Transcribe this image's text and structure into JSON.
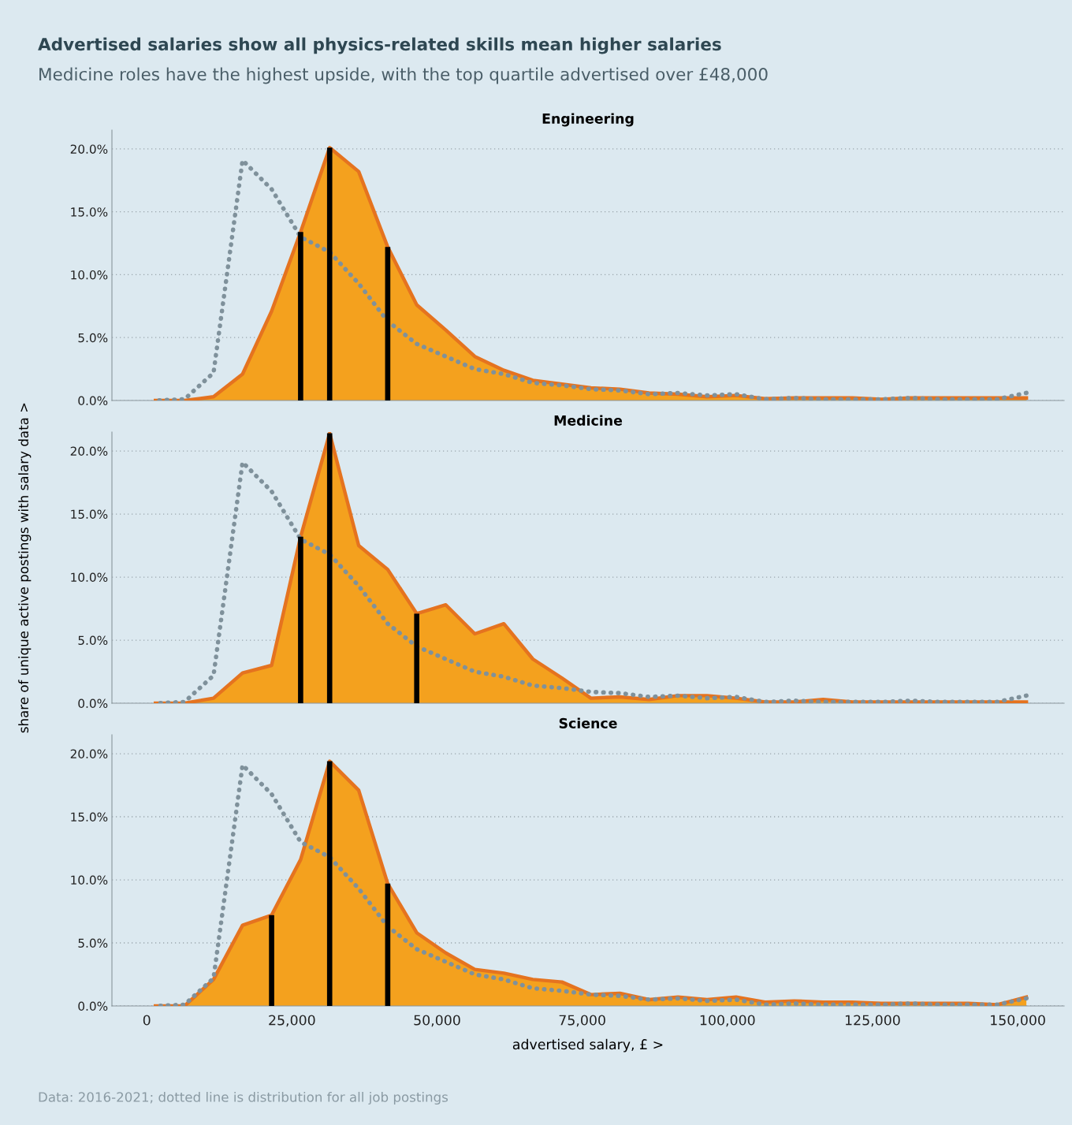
{
  "chart_data": [
    {
      "type": "other",
      "title": "Advertised salaries show all physics-related skills mean higher salaries",
      "subtitle": "Medicine roles have the highest upside, with the top quartile advertised over £48,000",
      "annotations": [
        "Data: 2016-2021; dotted line is distribution for all job postings"
      ]
    },
    {
      "type": "area",
      "title": "Engineering",
      "tick_labels": "y",
      "grid": "y",
      "xlim": [
        -6000,
        158000
      ],
      "ylim": [
        0,
        21.5
      ],
      "yticks": [
        {
          "value": 0,
          "label": "0.0%"
        },
        {
          "value": 5,
          "label": "5.0%"
        },
        {
          "value": 10,
          "label": "10.0%"
        },
        {
          "value": 15,
          "label": "15.0%"
        },
        {
          "value": 20,
          "label": "20.0%"
        }
      ],
      "x": [
        1500,
        6500,
        11500,
        16500,
        21500,
        26500,
        31500,
        36500,
        41500,
        46500,
        51500,
        56500,
        61500,
        66500,
        71500,
        76500,
        81500,
        86500,
        91500,
        96500,
        101500,
        106500,
        111500,
        116500,
        121500,
        126500,
        131500,
        136500,
        141500,
        146500,
        151500
      ],
      "series": [
        {
          "type": "area",
          "color": "#f4a11e",
          "values": [
            0,
            0,
            0.3,
            2.1,
            7.1,
            13.4,
            20.1,
            18.2,
            12.2,
            7.6,
            5.6,
            3.5,
            2.4,
            1.6,
            1.3,
            1.0,
            0.9,
            0.6,
            0.5,
            0.3,
            0.4,
            0.15,
            0.2,
            0.2,
            0.2,
            0.1,
            0.2,
            0.2,
            0.2,
            0.2,
            0.2
          ]
        },
        {
          "type": "line",
          "color": "#7f919b",
          "line_style": "dotted",
          "values": [
            0,
            0.1,
            2.2,
            19.1,
            16.8,
            13.0,
            11.8,
            9.3,
            6.3,
            4.5,
            3.5,
            2.5,
            2.1,
            1.4,
            1.2,
            0.9,
            0.8,
            0.5,
            0.6,
            0.4,
            0.5,
            0.1,
            0.2,
            0.1,
            0.1,
            0.1,
            0.2,
            0.1,
            0.1,
            0.1,
            0.6
          ]
        },
        {
          "type": "bar",
          "color": "#000000",
          "x": [
            26500,
            31500,
            41500
          ],
          "values": [
            13.4,
            20.1,
            12.2
          ]
        }
      ]
    },
    {
      "type": "area",
      "title": "Medicine",
      "ylabel": "share of unique active postings with salary data >",
      "tick_labels": "y",
      "grid": "y",
      "xlim": [
        -6000,
        158000
      ],
      "ylim": [
        0,
        21.5
      ],
      "yticks": [
        {
          "value": 0,
          "label": "0.0%"
        },
        {
          "value": 5,
          "label": "5.0%"
        },
        {
          "value": 10,
          "label": "10.0%"
        },
        {
          "value": 15,
          "label": "15.0%"
        },
        {
          "value": 20,
          "label": "20.0%"
        }
      ],
      "x": [
        1500,
        6500,
        11500,
        16500,
        21500,
        26500,
        31500,
        36500,
        41500,
        46500,
        51500,
        56500,
        61500,
        66500,
        71500,
        76500,
        81500,
        86500,
        91500,
        96500,
        101500,
        106500,
        111500,
        116500,
        121500,
        126500,
        131500,
        136500,
        141500,
        146500,
        151500
      ],
      "series": [
        {
          "type": "area",
          "color": "#f4a11e",
          "values": [
            0,
            0,
            0.4,
            2.4,
            3.0,
            13.2,
            21.4,
            12.5,
            10.6,
            7.1,
            7.8,
            5.5,
            6.3,
            3.5,
            2.0,
            0.4,
            0.5,
            0.3,
            0.6,
            0.6,
            0.4,
            0.1,
            0.1,
            0.3,
            0.1,
            0.1,
            0.1,
            0.1,
            0.1,
            0.1,
            0.1
          ]
        },
        {
          "type": "line",
          "color": "#7f919b",
          "line_style": "dotted",
          "values": [
            0,
            0.1,
            2.2,
            19.1,
            16.8,
            13.0,
            11.8,
            9.3,
            6.3,
            4.5,
            3.5,
            2.5,
            2.1,
            1.4,
            1.2,
            0.9,
            0.8,
            0.5,
            0.6,
            0.4,
            0.5,
            0.1,
            0.2,
            0.1,
            0.1,
            0.1,
            0.2,
            0.1,
            0.1,
            0.1,
            0.6
          ]
        },
        {
          "type": "bar",
          "color": "#000000",
          "x": [
            26500,
            31500,
            46500
          ],
          "values": [
            13.2,
            21.4,
            7.1
          ]
        }
      ]
    },
    {
      "type": "area",
      "title": "Science",
      "xlabel": "advertised salary, £ >",
      "grid": "y",
      "xlim": [
        -6000,
        158000
      ],
      "ylim": [
        0,
        21.5
      ],
      "xticks": [
        0,
        {
          "value": 25000,
          "label": "25,000"
        },
        {
          "value": 50000,
          "label": "50,000"
        },
        {
          "value": 75000,
          "label": "75,000"
        },
        {
          "value": 100000,
          "label": "100,000"
        },
        {
          "value": 125000,
          "label": "125,000"
        },
        {
          "value": 150000,
          "label": "150,000"
        }
      ],
      "yticks": [
        {
          "value": 0,
          "label": "0.0%"
        },
        {
          "value": 5,
          "label": "5.0%"
        },
        {
          "value": 10,
          "label": "10.0%"
        },
        {
          "value": 15,
          "label": "15.0%"
        },
        {
          "value": 20,
          "label": "20.0%"
        }
      ],
      "x": [
        1500,
        6500,
        11500,
        16500,
        21500,
        26500,
        31500,
        36500,
        41500,
        46500,
        51500,
        56500,
        61500,
        66500,
        71500,
        76500,
        81500,
        86500,
        91500,
        96500,
        101500,
        106500,
        111500,
        116500,
        121500,
        126500,
        131500,
        136500,
        141500,
        146500,
        151500
      ],
      "series": [
        {
          "type": "area",
          "color": "#f4a11e",
          "values": [
            0,
            0,
            2.1,
            6.4,
            7.2,
            11.6,
            19.4,
            17.1,
            9.7,
            5.8,
            4.2,
            2.9,
            2.6,
            2.1,
            1.9,
            0.9,
            1.0,
            0.5,
            0.7,
            0.5,
            0.7,
            0.3,
            0.4,
            0.3,
            0.3,
            0.2,
            0.2,
            0.2,
            0.2,
            0.1,
            0.7
          ]
        },
        {
          "type": "line",
          "color": "#7f919b",
          "line_style": "dotted",
          "values": [
            0,
            0.1,
            2.2,
            19.1,
            16.8,
            13.0,
            11.8,
            9.3,
            6.3,
            4.5,
            3.5,
            2.5,
            2.1,
            1.4,
            1.2,
            0.9,
            0.8,
            0.5,
            0.6,
            0.4,
            0.5,
            0.1,
            0.2,
            0.1,
            0.1,
            0.1,
            0.2,
            0.1,
            0.1,
            0.1,
            0.6
          ]
        },
        {
          "type": "bar",
          "color": "#000000",
          "x": [
            21500,
            31500,
            41500
          ],
          "values": [
            7.2,
            19.4,
            9.7
          ]
        }
      ]
    }
  ]
}
